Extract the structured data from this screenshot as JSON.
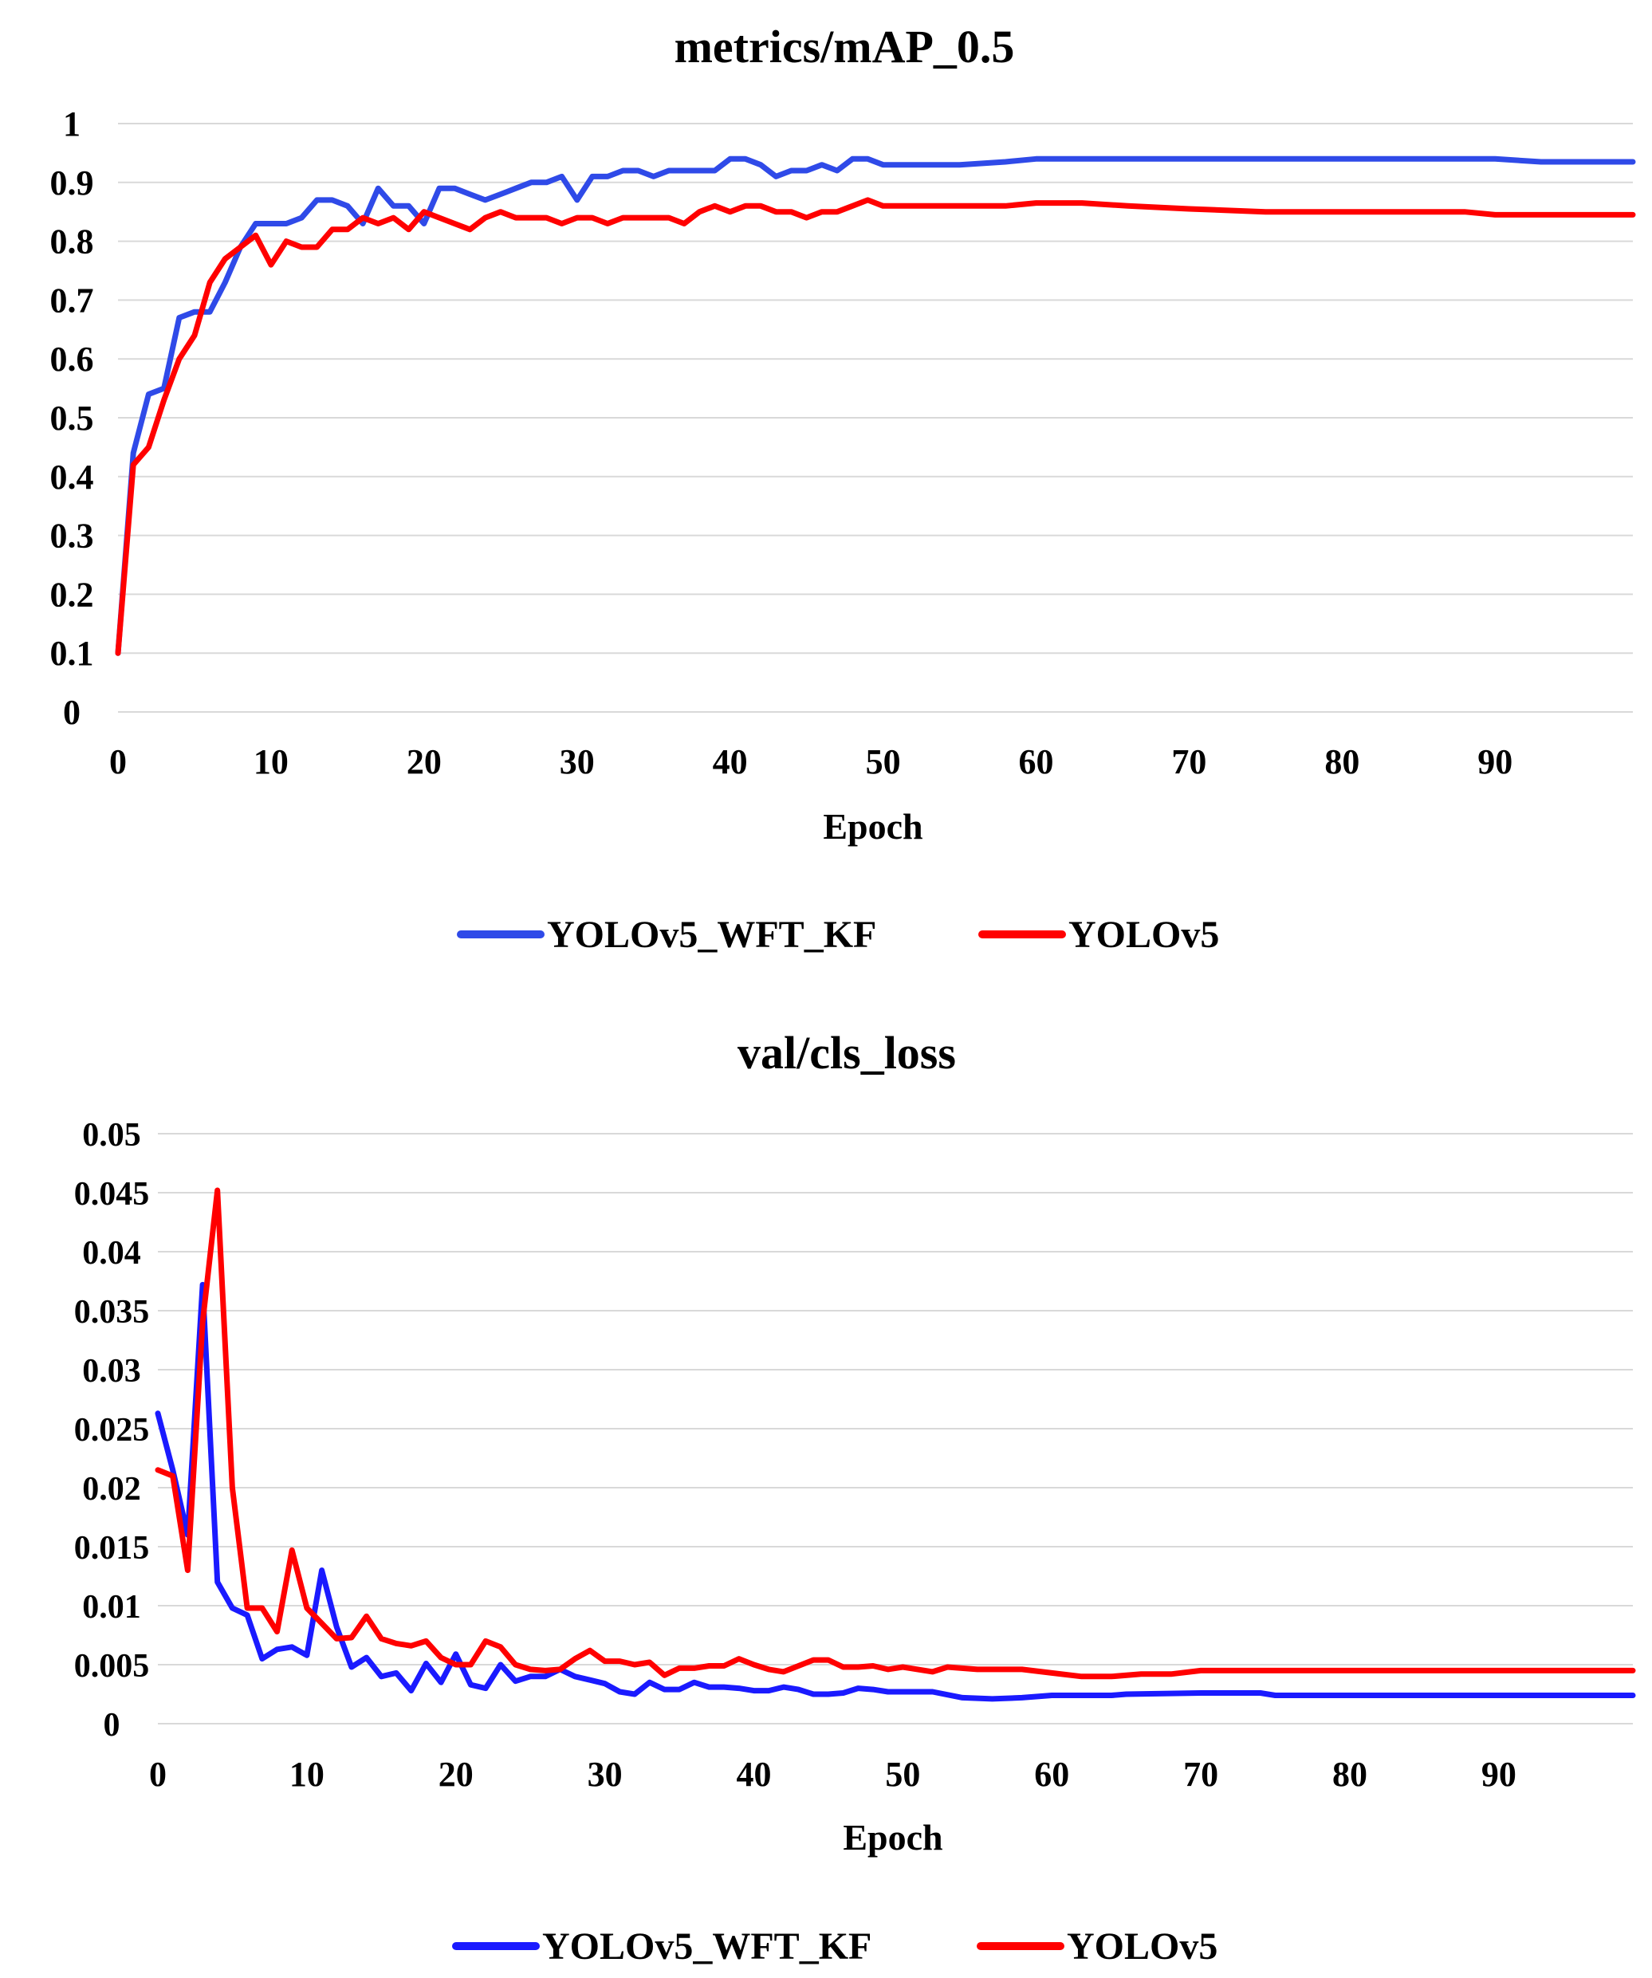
{
  "chart_data": [
    {
      "type": "line",
      "title": "metrics/mAP_0.5",
      "xlabel": "Epoch",
      "ylabel": "",
      "xlim": [
        0,
        99
      ],
      "ylim": [
        0,
        1
      ],
      "x_ticks": [
        0,
        10,
        20,
        30,
        40,
        50,
        60,
        70,
        80,
        90
      ],
      "y_ticks": [
        0,
        0.1,
        0.2,
        0.3,
        0.4,
        0.5,
        0.6,
        0.7,
        0.8,
        0.9,
        1
      ],
      "y_tick_labels": [
        "0",
        "0.1",
        "0.2",
        "0.3",
        "0.4",
        "0.5",
        "0.6",
        "0.7",
        "0.8",
        "0.9",
        "1"
      ],
      "grid": true,
      "legend_position": "bottom-center",
      "series": [
        {
          "name": "YOLOv5_WFT_KF",
          "color": "#2f4ae8",
          "points": [
            [
              0,
              0.1
            ],
            [
              1,
              0.44
            ],
            [
              2,
              0.54
            ],
            [
              3,
              0.55
            ],
            [
              4,
              0.67
            ],
            [
              5,
              0.68
            ],
            [
              6,
              0.68
            ],
            [
              7,
              0.73
            ],
            [
              8,
              0.79
            ],
            [
              9,
              0.83
            ],
            [
              10,
              0.83
            ],
            [
              11,
              0.83
            ],
            [
              12,
              0.84
            ],
            [
              13,
              0.87
            ],
            [
              14,
              0.87
            ],
            [
              15,
              0.86
            ],
            [
              16,
              0.83
            ],
            [
              17,
              0.89
            ],
            [
              18,
              0.86
            ],
            [
              19,
              0.86
            ],
            [
              20,
              0.83
            ],
            [
              21,
              0.89
            ],
            [
              22,
              0.89
            ],
            [
              23,
              0.88
            ],
            [
              24,
              0.87
            ],
            [
              25,
              0.88
            ],
            [
              26,
              0.89
            ],
            [
              27,
              0.9
            ],
            [
              28,
              0.9
            ],
            [
              29,
              0.91
            ],
            [
              30,
              0.87
            ],
            [
              31,
              0.91
            ],
            [
              32,
              0.91
            ],
            [
              33,
              0.92
            ],
            [
              34,
              0.92
            ],
            [
              35,
              0.91
            ],
            [
              36,
              0.92
            ],
            [
              37,
              0.92
            ],
            [
              38,
              0.92
            ],
            [
              39,
              0.92
            ],
            [
              40,
              0.94
            ],
            [
              41,
              0.94
            ],
            [
              42,
              0.93
            ],
            [
              43,
              0.91
            ],
            [
              44,
              0.92
            ],
            [
              45,
              0.92
            ],
            [
              46,
              0.93
            ],
            [
              47,
              0.92
            ],
            [
              48,
              0.94
            ],
            [
              49,
              0.94
            ],
            [
              50,
              0.93
            ],
            [
              52,
              0.93
            ],
            [
              55,
              0.93
            ],
            [
              58,
              0.935
            ],
            [
              60,
              0.94
            ],
            [
              65,
              0.94
            ],
            [
              70,
              0.94
            ],
            [
              75,
              0.94
            ],
            [
              80,
              0.94
            ],
            [
              85,
              0.94
            ],
            [
              90,
              0.94
            ],
            [
              93,
              0.935
            ],
            [
              95,
              0.935
            ],
            [
              99,
              0.935
            ]
          ]
        },
        {
          "name": "YOLOv5",
          "color": "#ff0000",
          "points": [
            [
              0,
              0.1
            ],
            [
              1,
              0.42
            ],
            [
              2,
              0.45
            ],
            [
              3,
              0.53
            ],
            [
              4,
              0.6
            ],
            [
              5,
              0.64
            ],
            [
              6,
              0.73
            ],
            [
              7,
              0.77
            ],
            [
              8,
              0.79
            ],
            [
              9,
              0.81
            ],
            [
              10,
              0.76
            ],
            [
              11,
              0.8
            ],
            [
              12,
              0.79
            ],
            [
              13,
              0.79
            ],
            [
              14,
              0.82
            ],
            [
              15,
              0.82
            ],
            [
              16,
              0.84
            ],
            [
              17,
              0.83
            ],
            [
              18,
              0.84
            ],
            [
              19,
              0.82
            ],
            [
              20,
              0.85
            ],
            [
              21,
              0.84
            ],
            [
              22,
              0.83
            ],
            [
              23,
              0.82
            ],
            [
              24,
              0.84
            ],
            [
              25,
              0.85
            ],
            [
              26,
              0.84
            ],
            [
              27,
              0.84
            ],
            [
              28,
              0.84
            ],
            [
              29,
              0.83
            ],
            [
              30,
              0.84
            ],
            [
              31,
              0.84
            ],
            [
              32,
              0.83
            ],
            [
              33,
              0.84
            ],
            [
              34,
              0.84
            ],
            [
              35,
              0.84
            ],
            [
              36,
              0.84
            ],
            [
              37,
              0.83
            ],
            [
              38,
              0.85
            ],
            [
              39,
              0.86
            ],
            [
              40,
              0.85
            ],
            [
              41,
              0.86
            ],
            [
              42,
              0.86
            ],
            [
              43,
              0.85
            ],
            [
              44,
              0.85
            ],
            [
              45,
              0.84
            ],
            [
              46,
              0.85
            ],
            [
              47,
              0.85
            ],
            [
              48,
              0.86
            ],
            [
              49,
              0.87
            ],
            [
              50,
              0.86
            ],
            [
              52,
              0.86
            ],
            [
              55,
              0.86
            ],
            [
              58,
              0.86
            ],
            [
              60,
              0.865
            ],
            [
              63,
              0.865
            ],
            [
              66,
              0.86
            ],
            [
              70,
              0.855
            ],
            [
              75,
              0.85
            ],
            [
              80,
              0.85
            ],
            [
              85,
              0.85
            ],
            [
              88,
              0.85
            ],
            [
              90,
              0.845
            ],
            [
              95,
              0.845
            ],
            [
              99,
              0.845
            ]
          ]
        }
      ]
    },
    {
      "type": "line",
      "title": "val/cls_loss",
      "xlabel": "Epoch",
      "ylabel": "",
      "xlim": [
        0,
        99
      ],
      "ylim": [
        0,
        0.05
      ],
      "x_ticks": [
        0,
        10,
        20,
        30,
        40,
        50,
        60,
        70,
        80,
        90
      ],
      "y_ticks": [
        0,
        0.005,
        0.01,
        0.015,
        0.02,
        0.025,
        0.03,
        0.035,
        0.04,
        0.045,
        0.05
      ],
      "y_tick_labels": [
        "0",
        "0.005",
        "0.01",
        "0.015",
        "0.02",
        "0.025",
        "0.03",
        "0.035",
        "0.04",
        "0.045",
        "0.05"
      ],
      "grid": true,
      "legend_position": "bottom-center",
      "series": [
        {
          "name": "YOLOv5_WFT_KF",
          "color": "#1a1aff",
          "points": [
            [
              0,
              0.0263
            ],
            [
              1,
              0.0215
            ],
            [
              2,
              0.016
            ],
            [
              3,
              0.0372
            ],
            [
              4,
              0.012
            ],
            [
              5,
              0.0098
            ],
            [
              6,
              0.0092
            ],
            [
              7,
              0.0055
            ],
            [
              8,
              0.0063
            ],
            [
              9,
              0.0065
            ],
            [
              10,
              0.0058
            ],
            [
              11,
              0.013
            ],
            [
              12,
              0.0082
            ],
            [
              13,
              0.0048
            ],
            [
              14,
              0.0056
            ],
            [
              15,
              0.004
            ],
            [
              16,
              0.0043
            ],
            [
              17,
              0.0028
            ],
            [
              18,
              0.0051
            ],
            [
              19,
              0.0035
            ],
            [
              20,
              0.0059
            ],
            [
              21,
              0.0033
            ],
            [
              22,
              0.003
            ],
            [
              23,
              0.005
            ],
            [
              24,
              0.0036
            ],
            [
              25,
              0.004
            ],
            [
              26,
              0.004
            ],
            [
              27,
              0.0046
            ],
            [
              28,
              0.004
            ],
            [
              29,
              0.0037
            ],
            [
              30,
              0.0034
            ],
            [
              31,
              0.0027
            ],
            [
              32,
              0.0025
            ],
            [
              33,
              0.0035
            ],
            [
              34,
              0.0029
            ],
            [
              35,
              0.0029
            ],
            [
              36,
              0.0035
            ],
            [
              37,
              0.0031
            ],
            [
              38,
              0.0031
            ],
            [
              39,
              0.003
            ],
            [
              40,
              0.0028
            ],
            [
              41,
              0.0028
            ],
            [
              42,
              0.0031
            ],
            [
              43,
              0.0029
            ],
            [
              44,
              0.0025
            ],
            [
              45,
              0.0025
            ],
            [
              46,
              0.0026
            ],
            [
              47,
              0.003
            ],
            [
              48,
              0.0029
            ],
            [
              49,
              0.0027
            ],
            [
              50,
              0.0027
            ],
            [
              52,
              0.0027
            ],
            [
              54,
              0.0022
            ],
            [
              56,
              0.0021
            ],
            [
              58,
              0.0022
            ],
            [
              60,
              0.0024
            ],
            [
              62,
              0.0024
            ],
            [
              64,
              0.0024
            ],
            [
              65,
              0.0025
            ],
            [
              70,
              0.0026
            ],
            [
              74,
              0.0026
            ],
            [
              75,
              0.0024
            ],
            [
              80,
              0.0024
            ],
            [
              85,
              0.0024
            ],
            [
              90,
              0.0024
            ],
            [
              95,
              0.0024
            ],
            [
              99,
              0.0024
            ]
          ]
        },
        {
          "name": "YOLOv5",
          "color": "#ff0000",
          "points": [
            [
              0,
              0.0215
            ],
            [
              1,
              0.021
            ],
            [
              2,
              0.013
            ],
            [
              3,
              0.034
            ],
            [
              4,
              0.0452
            ],
            [
              5,
              0.02
            ],
            [
              6,
              0.0098
            ],
            [
              7,
              0.0098
            ],
            [
              8,
              0.0078
            ],
            [
              9,
              0.0147
            ],
            [
              10,
              0.0098
            ],
            [
              11,
              0.0085
            ],
            [
              12,
              0.0072
            ],
            [
              13,
              0.0073
            ],
            [
              14,
              0.0091
            ],
            [
              15,
              0.0072
            ],
            [
              16,
              0.0068
            ],
            [
              17,
              0.0066
            ],
            [
              18,
              0.007
            ],
            [
              19,
              0.0056
            ],
            [
              20,
              0.005
            ],
            [
              21,
              0.005
            ],
            [
              22,
              0.007
            ],
            [
              23,
              0.0065
            ],
            [
              24,
              0.005
            ],
            [
              25,
              0.0046
            ],
            [
              26,
              0.0045
            ],
            [
              27,
              0.0046
            ],
            [
              28,
              0.0055
            ],
            [
              29,
              0.0062
            ],
            [
              30,
              0.0053
            ],
            [
              31,
              0.0053
            ],
            [
              32,
              0.005
            ],
            [
              33,
              0.0052
            ],
            [
              34,
              0.0041
            ],
            [
              35,
              0.0047
            ],
            [
              36,
              0.0047
            ],
            [
              37,
              0.0049
            ],
            [
              38,
              0.0049
            ],
            [
              39,
              0.0055
            ],
            [
              40,
              0.005
            ],
            [
              41,
              0.0046
            ],
            [
              42,
              0.0044
            ],
            [
              43,
              0.0049
            ],
            [
              44,
              0.0054
            ],
            [
              45,
              0.0054
            ],
            [
              46,
              0.0048
            ],
            [
              47,
              0.0048
            ],
            [
              48,
              0.0049
            ],
            [
              49,
              0.0046
            ],
            [
              50,
              0.0048
            ],
            [
              52,
              0.0044
            ],
            [
              53,
              0.0048
            ],
            [
              55,
              0.0046
            ],
            [
              58,
              0.0046
            ],
            [
              60,
              0.0043
            ],
            [
              62,
              0.004
            ],
            [
              64,
              0.004
            ],
            [
              66,
              0.0042
            ],
            [
              68,
              0.0042
            ],
            [
              70,
              0.0045
            ],
            [
              75,
              0.0045
            ],
            [
              80,
              0.0045
            ],
            [
              85,
              0.0045
            ],
            [
              90,
              0.0045
            ],
            [
              95,
              0.0045
            ],
            [
              99,
              0.0045
            ]
          ]
        }
      ]
    }
  ]
}
